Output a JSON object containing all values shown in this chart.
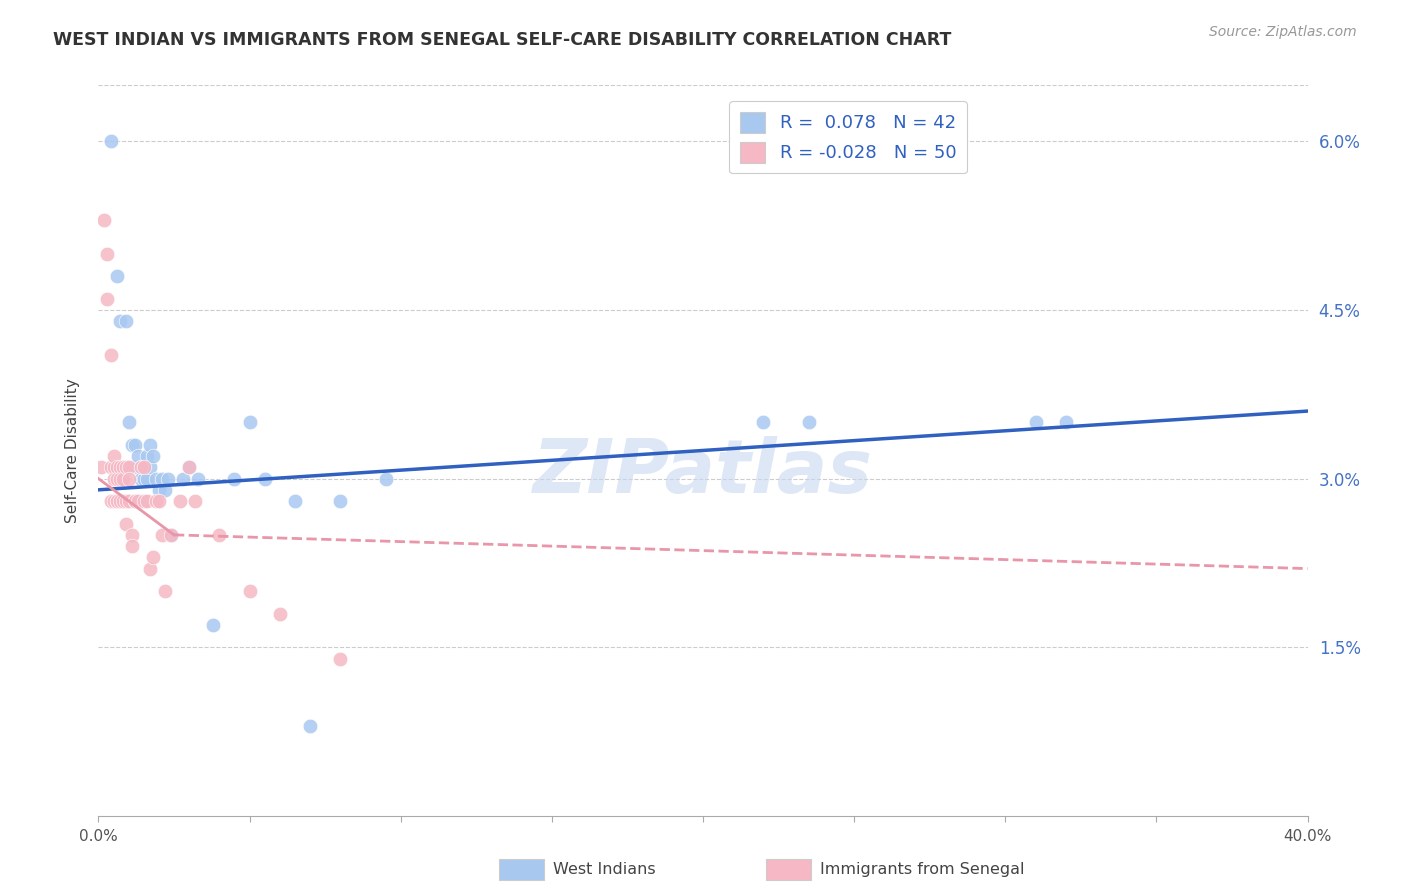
{
  "title": "WEST INDIAN VS IMMIGRANTS FROM SENEGAL SELF-CARE DISABILITY CORRELATION CHART",
  "source": "Source: ZipAtlas.com",
  "ylabel": "Self-Care Disability",
  "xmin": 0.0,
  "xmax": 0.4,
  "ymin": 0.0,
  "ymax": 0.065,
  "ytick_positions": [
    0.015,
    0.03,
    0.045,
    0.06
  ],
  "ytick_labels": [
    "1.5%",
    "3.0%",
    "4.5%",
    "6.0%"
  ],
  "west_indian_R": 0.078,
  "west_indian_N": 42,
  "senegal_R": -0.028,
  "senegal_N": 50,
  "west_indian_color": "#a8c8f0",
  "senegal_color": "#f5b8c4",
  "trendline_blue": "#3060c0",
  "trendline_pink": "#e896a8",
  "watermark_color": "#c8d8f0",
  "legend_label_blue": "West Indians",
  "legend_label_pink": "Immigrants from Senegal",
  "wi_trend_x0": 0.0,
  "wi_trend_y0": 0.029,
  "wi_trend_x1": 0.4,
  "wi_trend_y1": 0.036,
  "sn_trend_x0": 0.0,
  "sn_trend_y0": 0.03,
  "sn_trend_x1": 0.4,
  "sn_trend_y1": 0.022,
  "west_indian_x": [
    0.004,
    0.006,
    0.007,
    0.009,
    0.01,
    0.011,
    0.011,
    0.012,
    0.012,
    0.013,
    0.013,
    0.014,
    0.014,
    0.015,
    0.015,
    0.015,
    0.016,
    0.016,
    0.017,
    0.017,
    0.018,
    0.019,
    0.02,
    0.021,
    0.022,
    0.023,
    0.024,
    0.028,
    0.03,
    0.033,
    0.038,
    0.045,
    0.05,
    0.055,
    0.065,
    0.07,
    0.08,
    0.095,
    0.22,
    0.235,
    0.31,
    0.32
  ],
  "west_indian_y": [
    0.06,
    0.048,
    0.044,
    0.044,
    0.035,
    0.033,
    0.031,
    0.031,
    0.033,
    0.031,
    0.032,
    0.03,
    0.031,
    0.031,
    0.03,
    0.028,
    0.03,
    0.032,
    0.033,
    0.031,
    0.032,
    0.03,
    0.029,
    0.03,
    0.029,
    0.03,
    0.025,
    0.03,
    0.031,
    0.03,
    0.017,
    0.03,
    0.035,
    0.03,
    0.028,
    0.008,
    0.028,
    0.03,
    0.035,
    0.035,
    0.035,
    0.035
  ],
  "senegal_x": [
    0.001,
    0.002,
    0.003,
    0.003,
    0.004,
    0.004,
    0.004,
    0.005,
    0.005,
    0.005,
    0.005,
    0.006,
    0.006,
    0.006,
    0.006,
    0.007,
    0.007,
    0.007,
    0.008,
    0.008,
    0.008,
    0.009,
    0.009,
    0.009,
    0.01,
    0.01,
    0.01,
    0.011,
    0.011,
    0.012,
    0.012,
    0.013,
    0.014,
    0.015,
    0.015,
    0.016,
    0.017,
    0.018,
    0.019,
    0.02,
    0.021,
    0.022,
    0.024,
    0.027,
    0.03,
    0.032,
    0.04,
    0.05,
    0.06,
    0.08
  ],
  "senegal_y": [
    0.031,
    0.053,
    0.05,
    0.046,
    0.041,
    0.031,
    0.028,
    0.031,
    0.03,
    0.032,
    0.028,
    0.031,
    0.03,
    0.028,
    0.028,
    0.031,
    0.03,
    0.028,
    0.031,
    0.03,
    0.028,
    0.031,
    0.028,
    0.026,
    0.031,
    0.03,
    0.028,
    0.025,
    0.024,
    0.028,
    0.028,
    0.028,
    0.031,
    0.031,
    0.028,
    0.028,
    0.022,
    0.023,
    0.028,
    0.028,
    0.025,
    0.02,
    0.025,
    0.028,
    0.031,
    0.028,
    0.025,
    0.02,
    0.018,
    0.014
  ]
}
